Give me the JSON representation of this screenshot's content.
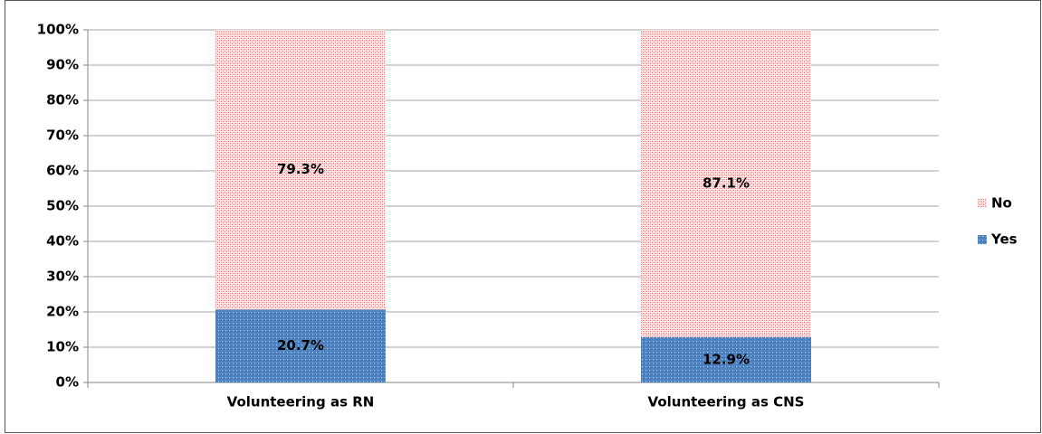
{
  "chart_data": {
    "type": "stacked-bar",
    "categories": [
      "Volunteering as RN",
      "Volunteering as CNS"
    ],
    "series": [
      {
        "name": "Yes",
        "color": "#4f81bd",
        "values": [
          20.7,
          12.9
        ],
        "value_labels": [
          "20.7%",
          "12.9%"
        ]
      },
      {
        "name": "No",
        "color": "#c0504d",
        "values": [
          79.3,
          87.1
        ],
        "value_labels": [
          "79.3%",
          "87.1%"
        ]
      }
    ],
    "ylim": [
      0,
      100
    ],
    "yticks": [
      {
        "value": 0,
        "label": "0%"
      },
      {
        "value": 10,
        "label": "10%"
      },
      {
        "value": 20,
        "label": "20%"
      },
      {
        "value": 30,
        "label": "30%"
      },
      {
        "value": 40,
        "label": "40%"
      },
      {
        "value": 50,
        "label": "50%"
      },
      {
        "value": 60,
        "label": "60%"
      },
      {
        "value": 70,
        "label": "70%"
      },
      {
        "value": 80,
        "label": "80%"
      },
      {
        "value": 90,
        "label": "90%"
      },
      {
        "value": 100,
        "label": "100%"
      }
    ],
    "grid": true,
    "legend": "right"
  }
}
